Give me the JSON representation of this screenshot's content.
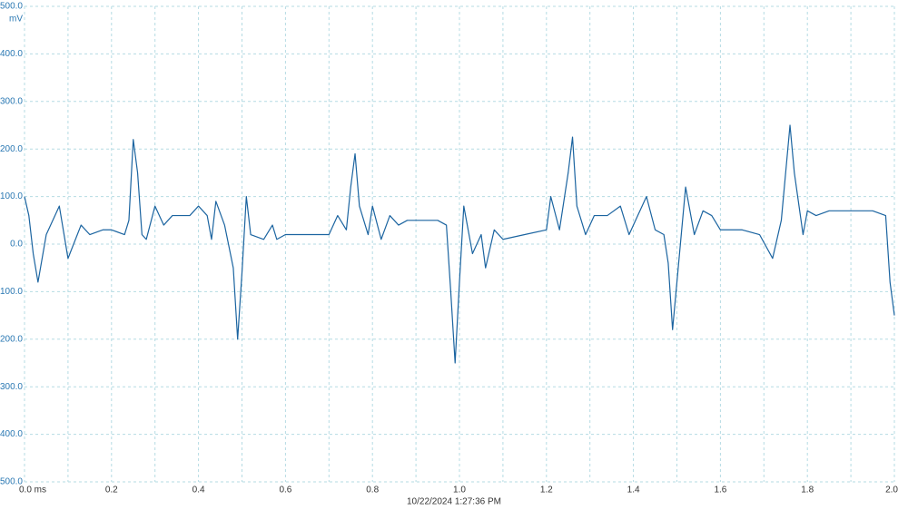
{
  "chart_data": {
    "type": "line",
    "y_unit": "mV",
    "caption": "10/22/2024 1:27:36 PM",
    "color": "#1b64a0",
    "grid": true,
    "xlim": [
      0,
      2
    ],
    "ylim": [
      -500,
      500
    ],
    "xticks": [
      {
        "value": 0,
        "label": "0.0 ms"
      },
      0.2,
      0.4,
      0.6,
      0.8,
      {
        "value": 1,
        "label": "1.0"
      },
      1.2,
      1.4,
      1.6,
      1.8,
      {
        "value": 2,
        "label": "2.0"
      }
    ],
    "x_minor_ticks": [
      0.1,
      0.3,
      0.5,
      0.7,
      0.9,
      1.1,
      1.3,
      1.5,
      1.7,
      1.9
    ],
    "yticks": [
      {
        "value": -500,
        "label": "-500.0"
      },
      {
        "value": -400,
        "label": "-400.0"
      },
      {
        "value": -300,
        "label": "-300.0"
      },
      {
        "value": -200,
        "label": "-200.0"
      },
      {
        "value": -100,
        "label": "-100.0"
      },
      {
        "value": 0,
        "label": "0.0"
      },
      {
        "value": 100,
        "label": "100.0"
      },
      {
        "value": 200,
        "label": "200.0"
      },
      {
        "value": 300,
        "label": "300.0"
      },
      {
        "value": 400,
        "label": "400.0"
      },
      {
        "value": 500,
        "label": "500.0"
      }
    ],
    "x": [
      0,
      0.01,
      0.02,
      0.031,
      0.05,
      0.08,
      0.1,
      0.13,
      0.15,
      0.18,
      0.2,
      0.23,
      0.24,
      0.25,
      0.26,
      0.27,
      0.28,
      0.3,
      0.32,
      0.34,
      0.36,
      0.38,
      0.4,
      0.42,
      0.43,
      0.44,
      0.46,
      0.48,
      0.49,
      0.5,
      0.51,
      0.52,
      0.55,
      0.57,
      0.58,
      0.6,
      0.65,
      0.7,
      0.72,
      0.74,
      0.75,
      0.76,
      0.77,
      0.79,
      0.8,
      0.82,
      0.84,
      0.86,
      0.88,
      0.9,
      0.95,
      0.97,
      0.98,
      0.99,
      1.0,
      1.01,
      1.03,
      1.05,
      1.06,
      1.08,
      1.1,
      1.15,
      1.2,
      1.21,
      1.23,
      1.25,
      1.26,
      1.27,
      1.29,
      1.31,
      1.34,
      1.37,
      1.39,
      1.41,
      1.43,
      1.45,
      1.47,
      1.48,
      1.49,
      1.5,
      1.52,
      1.54,
      1.56,
      1.58,
      1.6,
      1.65,
      1.69,
      1.72,
      1.74,
      1.75,
      1.76,
      1.77,
      1.79,
      1.8,
      1.82,
      1.85,
      1.9,
      1.95,
      1.98,
      1.99,
      2.0
    ],
    "values": [
      100,
      60,
      -20,
      -80,
      20,
      80,
      -30,
      40,
      20,
      30,
      30,
      20,
      50,
      220,
      150,
      20,
      10,
      80,
      40,
      60,
      60,
      60,
      80,
      60,
      10,
      90,
      40,
      -50,
      -200,
      -60,
      100,
      20,
      10,
      40,
      10,
      20,
      20,
      20,
      60,
      30,
      120,
      190,
      80,
      20,
      80,
      10,
      60,
      40,
      50,
      50,
      50,
      40,
      -100,
      -250,
      -80,
      80,
      -20,
      20,
      -50,
      30,
      10,
      20,
      30,
      100,
      30,
      150,
      225,
      80,
      20,
      60,
      60,
      80,
      20,
      60,
      100,
      30,
      20,
      -40,
      -180,
      -80,
      120,
      20,
      70,
      60,
      30,
      30,
      20,
      -30,
      50,
      150,
      250,
      150,
      20,
      70,
      60,
      70,
      70,
      70,
      60,
      -80,
      -150
    ]
  }
}
